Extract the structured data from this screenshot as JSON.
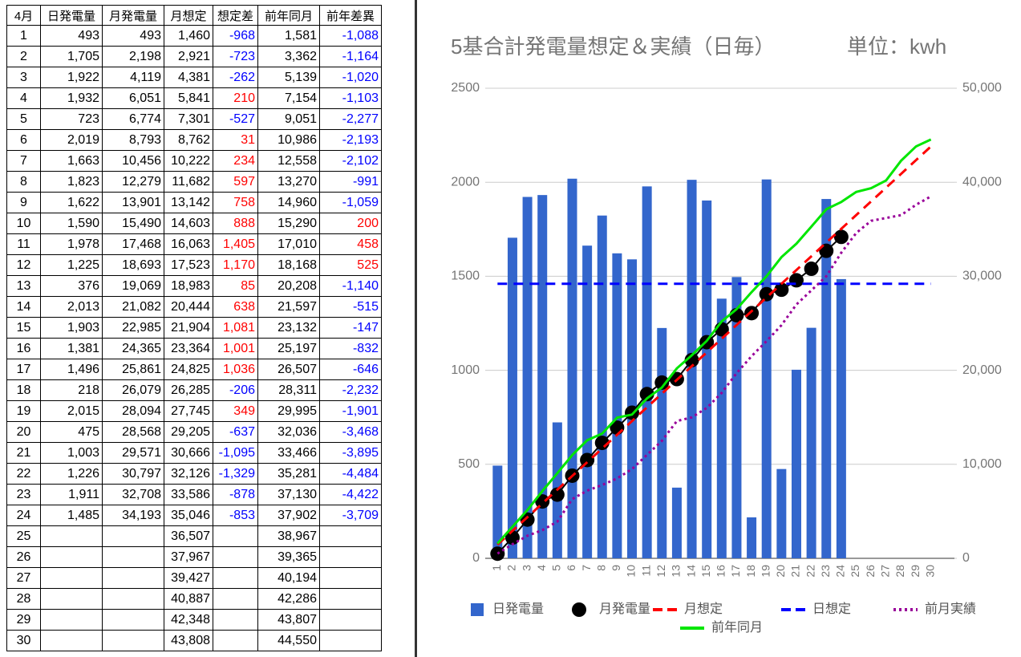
{
  "table": {
    "header": [
      "4月",
      "日発電量",
      "月発電量",
      "月想定",
      "想定差",
      "前年同月",
      "前年差異"
    ],
    "rows": [
      [
        "1",
        "493",
        "493",
        "1,460",
        "-968",
        "1,581",
        "-1,088"
      ],
      [
        "2",
        "1,705",
        "2,198",
        "2,921",
        "-723",
        "3,362",
        "-1,164"
      ],
      [
        "3",
        "1,922",
        "4,119",
        "4,381",
        "-262",
        "5,139",
        "-1,020"
      ],
      [
        "4",
        "1,932",
        "6,051",
        "5,841",
        "210",
        "7,154",
        "-1,103"
      ],
      [
        "5",
        "723",
        "6,774",
        "7,301",
        "-527",
        "9,051",
        "-2,277"
      ],
      [
        "6",
        "2,019",
        "8,793",
        "8,762",
        "31",
        "10,986",
        "-2,193"
      ],
      [
        "7",
        "1,663",
        "10,456",
        "10,222",
        "234",
        "12,558",
        "-2,102"
      ],
      [
        "8",
        "1,823",
        "12,279",
        "11,682",
        "597",
        "13,270",
        "-991"
      ],
      [
        "9",
        "1,622",
        "13,901",
        "13,142",
        "758",
        "14,960",
        "-1,059"
      ],
      [
        "10",
        "1,590",
        "15,490",
        "14,603",
        "888",
        "15,290",
        "200"
      ],
      [
        "11",
        "1,978",
        "17,468",
        "16,063",
        "1,405",
        "17,010",
        "458"
      ],
      [
        "12",
        "1,225",
        "18,693",
        "17,523",
        "1,170",
        "18,168",
        "525"
      ],
      [
        "13",
        "376",
        "19,069",
        "18,983",
        "85",
        "20,208",
        "-1,140"
      ],
      [
        "14",
        "2,013",
        "21,082",
        "20,444",
        "638",
        "21,597",
        "-515"
      ],
      [
        "15",
        "1,903",
        "22,985",
        "21,904",
        "1,081",
        "23,132",
        "-147"
      ],
      [
        "16",
        "1,381",
        "24,365",
        "23,364",
        "1,001",
        "25,197",
        "-832"
      ],
      [
        "17",
        "1,496",
        "25,861",
        "24,825",
        "1,036",
        "26,507",
        "-646"
      ],
      [
        "18",
        "218",
        "26,079",
        "26,285",
        "-206",
        "28,311",
        "-2,232"
      ],
      [
        "19",
        "2,015",
        "28,094",
        "27,745",
        "349",
        "29,995",
        "-1,901"
      ],
      [
        "20",
        "475",
        "28,568",
        "29,205",
        "-637",
        "32,036",
        "-3,468"
      ],
      [
        "21",
        "1,003",
        "29,571",
        "30,666",
        "-1,095",
        "33,466",
        "-3,895"
      ],
      [
        "22",
        "1,226",
        "30,797",
        "32,126",
        "-1,329",
        "35,281",
        "-4,484"
      ],
      [
        "23",
        "1,911",
        "32,708",
        "33,586",
        "-878",
        "37,130",
        "-4,422"
      ],
      [
        "24",
        "1,485",
        "34,193",
        "35,046",
        "-853",
        "37,902",
        "-3,709"
      ],
      [
        "25",
        null,
        null,
        "36,507",
        null,
        "38,967",
        null
      ],
      [
        "26",
        null,
        null,
        "37,967",
        null,
        "39,365",
        null
      ],
      [
        "27",
        null,
        null,
        "39,427",
        null,
        "40,194",
        null
      ],
      [
        "28",
        null,
        null,
        "40,887",
        null,
        "42,286",
        null
      ],
      [
        "29",
        null,
        null,
        "42,348",
        null,
        "43,807",
        null
      ],
      [
        "30",
        null,
        null,
        "43,808",
        null,
        "44,550",
        null
      ]
    ]
  },
  "chart_data": {
    "type": "combo",
    "title": "5基合計発電量想定＆実績（日毎）",
    "subtitle": "単位：kwh",
    "categories": [
      "1",
      "2",
      "3",
      "4",
      "5",
      "6",
      "7",
      "8",
      "9",
      "10",
      "11",
      "12",
      "13",
      "14",
      "15",
      "16",
      "17",
      "18",
      "19",
      "20",
      "21",
      "22",
      "23",
      "24",
      "25",
      "26",
      "27",
      "28",
      "29",
      "30"
    ],
    "ylim": [
      0,
      2500
    ],
    "yticks": [
      0,
      500,
      1000,
      1500,
      2000,
      2500
    ],
    "y2lim": [
      0,
      50000
    ],
    "y2ticks": [
      0,
      {
        "value": 10000,
        "label": "10,000"
      },
      {
        "value": 20000,
        "label": "20,000"
      },
      {
        "value": 30000,
        "label": "30,000"
      },
      {
        "value": 40000,
        "label": "40,000"
      },
      {
        "value": 50000,
        "label": "50,000"
      }
    ],
    "grid": true,
    "legend": "bottom",
    "series": [
      {
        "name": "日発電量",
        "kind": "bar",
        "color": "#3366cc",
        "values": [
          493,
          1705,
          1922,
          1932,
          723,
          2019,
          1663,
          1823,
          1622,
          1590,
          1978,
          1225,
          376,
          2013,
          1903,
          1381,
          1496,
          218,
          2015,
          475,
          1003,
          1226,
          1911,
          1485,
          null,
          null,
          null,
          null,
          null,
          null
        ]
      },
      {
        "name": "月発電量",
        "kind": "dots",
        "color": "#000000",
        "axis": "y2",
        "values": [
          493,
          2198,
          4119,
          6051,
          6774,
          8793,
          10456,
          12279,
          13901,
          15490,
          17468,
          18693,
          19069,
          21082,
          22985,
          24365,
          25861,
          26079,
          28094,
          28568,
          29571,
          30797,
          32708,
          34193,
          null,
          null,
          null,
          null,
          null,
          null
        ]
      },
      {
        "name": "月想定",
        "kind": "dashed",
        "color": "#ff0000",
        "axis": "y2",
        "values": [
          1460,
          2921,
          4381,
          5841,
          7301,
          8762,
          10222,
          11682,
          13142,
          14603,
          16063,
          17523,
          18983,
          20444,
          21904,
          23364,
          24825,
          26285,
          27745,
          29205,
          30666,
          32126,
          33586,
          35046,
          36507,
          37967,
          39427,
          40887,
          42348,
          43808
        ]
      },
      {
        "name": "日想定",
        "kind": "dashed",
        "color": "#0000ff",
        "values": [
          1460,
          1460,
          1460,
          1460,
          1460,
          1460,
          1460,
          1460,
          1460,
          1460,
          1460,
          1460,
          1460,
          1460,
          1460,
          1460,
          1460,
          1460,
          1460,
          1460,
          1460,
          1460,
          1460,
          1460,
          1460,
          1460,
          1460,
          1460,
          1460,
          1460
        ]
      },
      {
        "name": "前月実績",
        "kind": "dotted",
        "color": "#990099",
        "axis": "y2",
        "values": [
          500,
          1500,
          2400,
          3000,
          3900,
          6300,
          7200,
          7800,
          8500,
          9500,
          11000,
          12500,
          14600,
          15000,
          16000,
          17600,
          19700,
          21500,
          23100,
          24800,
          27000,
          28500,
          30000,
          32500,
          34600,
          35900,
          36200,
          36500,
          37600,
          38500
        ]
      },
      {
        "name": "前年同月",
        "kind": "line",
        "color": "#00e600",
        "axis": "y2",
        "values": [
          1581,
          3362,
          5139,
          7154,
          9051,
          10986,
          12558,
          13270,
          14960,
          15290,
          17010,
          18168,
          20208,
          21597,
          23132,
          25197,
          26507,
          28311,
          29995,
          32036,
          33466,
          35281,
          37130,
          37902,
          38967,
          39365,
          40194,
          42286,
          43807,
          44550
        ]
      }
    ]
  }
}
